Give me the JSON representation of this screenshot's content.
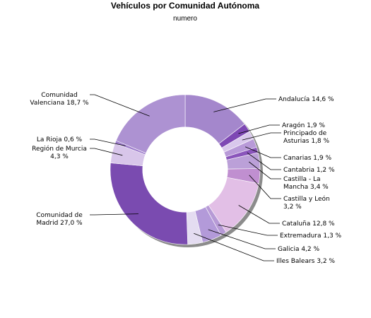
{
  "chart_data": {
    "type": "pie",
    "donut": true,
    "title": "Vehículos por Comunidad Autónoma",
    "subtitle": "numero",
    "unit": "%",
    "legend": "none",
    "slices": [
      {
        "name": "Andalucía",
        "value": 14.6,
        "label": [
          "Andalucía 14,6 %"
        ],
        "color": "#a487cc"
      },
      {
        "name": "Aragón",
        "value": 1.9,
        "label": [
          "Aragón 1,9 %"
        ],
        "color": "#7e48b4"
      },
      {
        "name": "Principado de Asturias",
        "value": 1.8,
        "label": [
          "Principado de",
          "Asturias 1,8 %"
        ],
        "color": "#d9c8ec"
      },
      {
        "name": "Canarias",
        "value": 1.9,
        "label": [
          "Canarias 1,9 %"
        ],
        "color": "#b89ad8"
      },
      {
        "name": "Cantabria",
        "value": 1.2,
        "label": [
          "Cantabria 1,2 %"
        ],
        "color": "#8a55bb"
      },
      {
        "name": "Castilla - La Mancha",
        "value": 3.4,
        "label": [
          "Castilla - La",
          "Mancha 3,4 %"
        ],
        "color": "#bba0d8"
      },
      {
        "name": "Castilla y León",
        "value": 3.2,
        "label": [
          "Castilla y León",
          "3,2 %"
        ],
        "color": "#c08fd0"
      },
      {
        "name": "Cataluña",
        "value": 12.8,
        "label": [
          "Cataluña 12,8 %"
        ],
        "color": "#e2bfe6"
      },
      {
        "name": "Extremadura",
        "value": 1.3,
        "label": [
          "Extremadura 1,3 %"
        ],
        "color": "#b79ad6"
      },
      {
        "name": "Galicia",
        "value": 4.2,
        "label": [
          "Galicia 4,2 %"
        ],
        "color": "#b39ad9"
      },
      {
        "name": "Illes Balears",
        "value": 3.2,
        "label": [
          "Illes Balears 3,2 %"
        ],
        "color": "#e4dcf1"
      },
      {
        "name": "Comunidad de Madrid",
        "value": 27.0,
        "label": [
          "Comunidad de",
          "Madrid 27,0 %"
        ],
        "color": "#7a4bb0"
      },
      {
        "name": "Región de Murcia",
        "value": 4.3,
        "label": [
          "Región de Murcia",
          "4,3 %"
        ],
        "color": "#d8c6ea"
      },
      {
        "name": "La Rioja",
        "value": 0.6,
        "label": [
          "La Rioja 0,6 %"
        ],
        "color": "#9e7dcc"
      },
      {
        "name": "Comunidad Valenciana",
        "value": 18.7,
        "label": [
          "Comunidad",
          "Valenciana 18,7 %"
        ],
        "color": "#ad92d2"
      }
    ]
  }
}
